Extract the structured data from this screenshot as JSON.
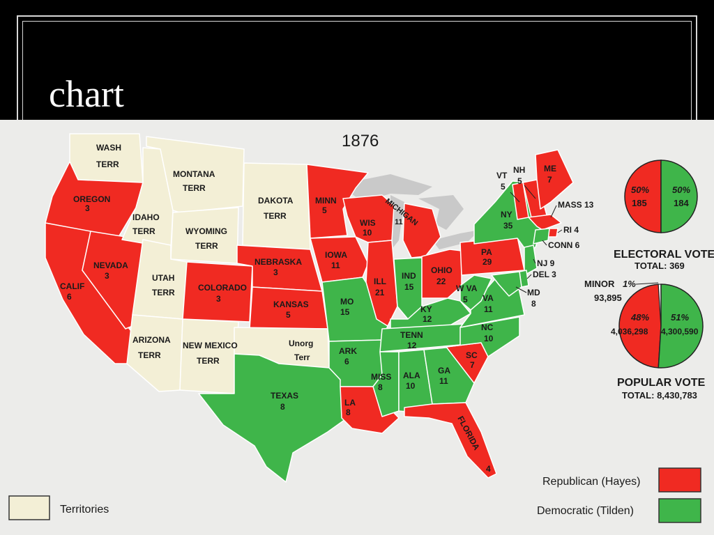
{
  "slide": {
    "title": "chart"
  },
  "map": {
    "year": "1876",
    "colors": {
      "republican": "#f02a22",
      "democratic": "#3fb54a",
      "territory": "#f3efd6",
      "water": "#c9c9c9",
      "border": "#ffffff"
    },
    "states": [
      {
        "id": "wash",
        "name": "WASH",
        "sub": "TERR",
        "party": "territory"
      },
      {
        "id": "oregon",
        "name": "OREGON",
        "sub": "3",
        "party": "republican"
      },
      {
        "id": "calif",
        "name": "CALIF",
        "sub": "6",
        "party": "republican"
      },
      {
        "id": "nevada",
        "name": "NEVADA",
        "sub": "3",
        "party": "republican"
      },
      {
        "id": "idaho",
        "name": "IDAHO",
        "sub": "TERR",
        "party": "territory"
      },
      {
        "id": "montana",
        "name": "MONTANA",
        "sub": "TERR",
        "party": "territory"
      },
      {
        "id": "wyoming",
        "name": "WYOMING",
        "sub": "TERR",
        "party": "territory"
      },
      {
        "id": "utah",
        "name": "UTAH",
        "sub": "TERR",
        "party": "territory"
      },
      {
        "id": "arizona",
        "name": "ARIZONA",
        "sub": "TERR",
        "party": "territory"
      },
      {
        "id": "newmexico",
        "name": "NEW MEXICO",
        "sub": "TERR",
        "party": "territory"
      },
      {
        "id": "colorado",
        "name": "COLORADO",
        "sub": "3",
        "party": "republican"
      },
      {
        "id": "dakota",
        "name": "DAKOTA",
        "sub": "TERR",
        "party": "territory"
      },
      {
        "id": "nebraska",
        "name": "NEBRASKA",
        "sub": "3",
        "party": "republican"
      },
      {
        "id": "kansas",
        "name": "KANSAS",
        "sub": "5",
        "party": "republican"
      },
      {
        "id": "unorg",
        "name": "Unorg",
        "sub": "Terr",
        "party": "territory"
      },
      {
        "id": "texas",
        "name": "TEXAS",
        "sub": "8",
        "party": "democratic"
      },
      {
        "id": "minn",
        "name": "MINN",
        "sub": "5",
        "party": "republican"
      },
      {
        "id": "iowa",
        "name": "IOWA",
        "sub": "11",
        "party": "republican"
      },
      {
        "id": "mo",
        "name": "MO",
        "sub": "15",
        "party": "democratic"
      },
      {
        "id": "ark",
        "name": "ARK",
        "sub": "6",
        "party": "democratic"
      },
      {
        "id": "la",
        "name": "LA",
        "sub": "8",
        "party": "republican"
      },
      {
        "id": "wis",
        "name": "WIS",
        "sub": "10",
        "party": "republican"
      },
      {
        "id": "ill",
        "name": "ILL",
        "sub": "21",
        "party": "republican"
      },
      {
        "id": "michigan",
        "name": "MICHIGAN",
        "sub": "11",
        "party": "republican"
      },
      {
        "id": "ind",
        "name": "IND",
        "sub": "15",
        "party": "democratic"
      },
      {
        "id": "ohio",
        "name": "OHIO",
        "sub": "22",
        "party": "republican"
      },
      {
        "id": "ky",
        "name": "KY",
        "sub": "12",
        "party": "democratic"
      },
      {
        "id": "tenn",
        "name": "TENN",
        "sub": "12",
        "party": "democratic"
      },
      {
        "id": "miss",
        "name": "MISS",
        "sub": "8",
        "party": "democratic"
      },
      {
        "id": "ala",
        "name": "ALA",
        "sub": "10",
        "party": "democratic"
      },
      {
        "id": "ga",
        "name": "GA",
        "sub": "11",
        "party": "democratic"
      },
      {
        "id": "florida",
        "name": "FLORIDA",
        "sub": "4",
        "party": "republican"
      },
      {
        "id": "sc",
        "name": "SC",
        "sub": "7",
        "party": "republican"
      },
      {
        "id": "nc",
        "name": "NC",
        "sub": "10",
        "party": "democratic"
      },
      {
        "id": "va",
        "name": "VA",
        "sub": "11",
        "party": "democratic"
      },
      {
        "id": "wva",
        "name": "W VA",
        "sub": "5",
        "party": "democratic"
      },
      {
        "id": "pa",
        "name": "PA",
        "sub": "29",
        "party": "republican"
      },
      {
        "id": "ny",
        "name": "NY",
        "sub": "35",
        "party": "democratic"
      },
      {
        "id": "vt",
        "name": "VT",
        "sub": "5",
        "party": "republican"
      },
      {
        "id": "nh",
        "name": "NH",
        "sub": "5",
        "party": "republican"
      },
      {
        "id": "me",
        "name": "ME",
        "sub": "7",
        "party": "republican"
      },
      {
        "id": "mass",
        "name": "MASS 13",
        "sub": "",
        "party": "republican"
      },
      {
        "id": "ri",
        "name": "RI 4",
        "sub": "",
        "party": "republican"
      },
      {
        "id": "conn",
        "name": "CONN 6",
        "sub": "",
        "party": "democratic"
      },
      {
        "id": "nj",
        "name": "NJ 9",
        "sub": "",
        "party": "democratic"
      },
      {
        "id": "del",
        "name": "DEL 3",
        "sub": "",
        "party": "democratic"
      },
      {
        "id": "md",
        "name": "MD",
        "sub": "8",
        "party": "democratic"
      }
    ],
    "legend": {
      "territories": "Territories",
      "republican": "Republican (Hayes)",
      "democratic": "Democratic (Tilden)"
    }
  },
  "electoral_vote": {
    "title": "ELECTORAL VOTE",
    "total": "TOTAL: 369",
    "republican": {
      "pct_label": "50%",
      "votes": "185",
      "share": 0.5
    },
    "democratic": {
      "pct_label": "50%",
      "votes": "184",
      "share": 0.5
    }
  },
  "popular_vote": {
    "title": "POPULAR VOTE",
    "total": "TOTAL: 8,430,783",
    "minor": {
      "label": "MINOR",
      "pct_label": "1%",
      "votes": "93,895",
      "share": 0.01
    },
    "republican": {
      "pct_label": "48%",
      "votes": "4,036,298",
      "share": 0.48
    },
    "democratic": {
      "pct_label": "51%",
      "votes": "4,300,590",
      "share": 0.51
    }
  }
}
